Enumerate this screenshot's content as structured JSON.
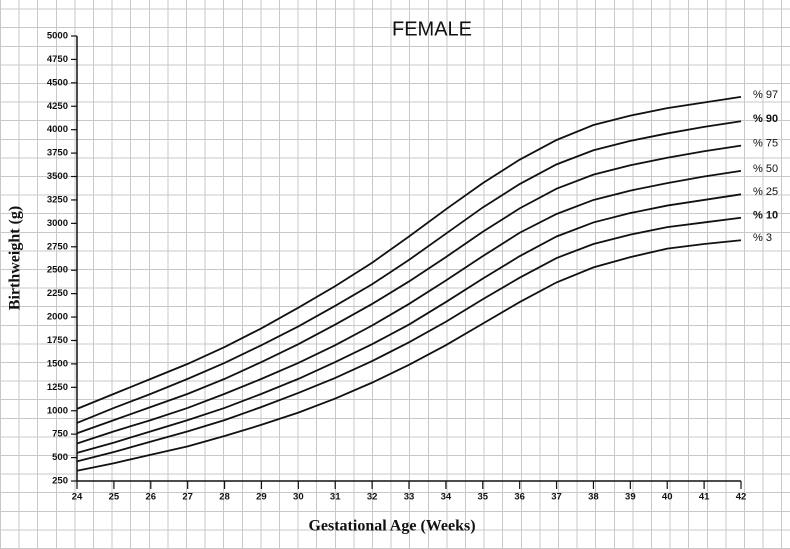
{
  "chart_data": {
    "type": "line",
    "title": "FEMALE",
    "x_label": "Gestational Age (Weeks)",
    "y_label": "Birthweight (g)",
    "x": [
      24,
      25,
      26,
      27,
      28,
      29,
      30,
      31,
      32,
      33,
      34,
      35,
      36,
      37,
      38,
      39,
      40,
      41,
      42
    ],
    "xlim": [
      24,
      42
    ],
    "xticks": [
      24,
      25,
      26,
      27,
      28,
      29,
      30,
      31,
      32,
      33,
      34,
      35,
      36,
      37,
      38,
      39,
      40,
      41,
      42
    ],
    "ylim": [
      250,
      5000
    ],
    "yticks": [
      250,
      500,
      750,
      1000,
      1250,
      1500,
      1750,
      2000,
      2250,
      2500,
      2750,
      3000,
      3250,
      3500,
      3750,
      4000,
      4250,
      4500,
      4750,
      5000
    ],
    "series": [
      {
        "name": "% 97",
        "color": "#111111",
        "bold": false,
        "values": [
          1020,
          1180,
          1340,
          1500,
          1680,
          1880,
          2100,
          2330,
          2580,
          2860,
          3150,
          3430,
          3680,
          3890,
          4050,
          4150,
          4230,
          4290,
          4350
        ]
      },
      {
        "name": "% 90",
        "color": "#111111",
        "bold": true,
        "values": [
          870,
          1030,
          1180,
          1340,
          1510,
          1700,
          1900,
          2120,
          2350,
          2610,
          2890,
          3170,
          3420,
          3630,
          3780,
          3880,
          3960,
          4030,
          4090
        ]
      },
      {
        "name": "% 75",
        "color": "#111111",
        "bold": false,
        "values": [
          760,
          900,
          1040,
          1180,
          1340,
          1520,
          1710,
          1920,
          2140,
          2380,
          2640,
          2910,
          3160,
          3370,
          3520,
          3620,
          3700,
          3770,
          3830
        ]
      },
      {
        "name": "% 50",
        "color": "#111111",
        "bold": false,
        "values": [
          650,
          780,
          900,
          1030,
          1180,
          1340,
          1510,
          1700,
          1910,
          2140,
          2390,
          2650,
          2900,
          3100,
          3250,
          3350,
          3430,
          3500,
          3560
        ]
      },
      {
        "name": "% 25",
        "color": "#111111",
        "bold": false,
        "values": [
          550,
          660,
          780,
          900,
          1030,
          1180,
          1340,
          1520,
          1710,
          1920,
          2160,
          2410,
          2650,
          2860,
          3010,
          3110,
          3190,
          3250,
          3310
        ]
      },
      {
        "name": "% 10",
        "color": "#111111",
        "bold": true,
        "values": [
          460,
          560,
          670,
          780,
          900,
          1040,
          1190,
          1350,
          1530,
          1730,
          1950,
          2190,
          2420,
          2630,
          2780,
          2880,
          2960,
          3010,
          3060
        ]
      },
      {
        "name": "% 3",
        "color": "#111111",
        "bold": false,
        "values": [
          360,
          440,
          530,
          620,
          730,
          850,
          980,
          1130,
          1300,
          1490,
          1700,
          1930,
          2160,
          2370,
          2530,
          2640,
          2730,
          2780,
          2820
        ]
      }
    ]
  }
}
